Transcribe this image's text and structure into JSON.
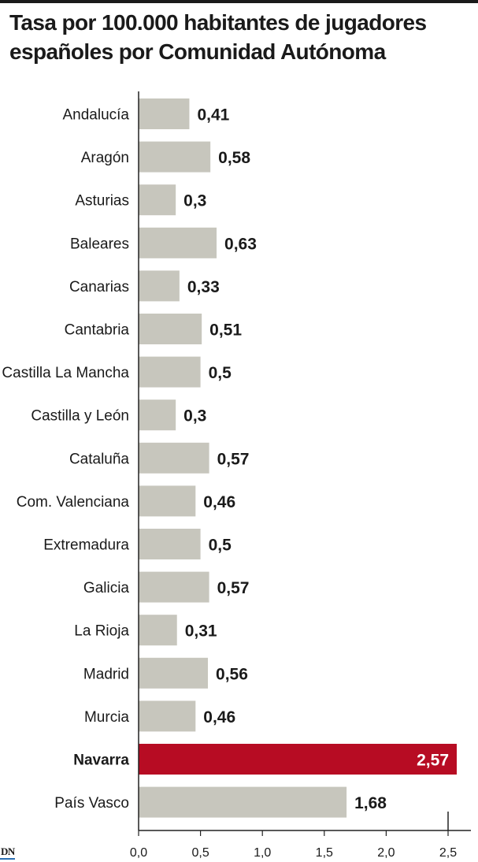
{
  "chart_data": {
    "type": "bar",
    "orientation": "horizontal",
    "title": "Tasa por 100.000 habitantes de jugadores españoles por Comunidad Autónoma",
    "categories": [
      "Andalucía",
      "Aragón",
      "Asturias",
      "Baleares",
      "Canarias",
      "Cantabria",
      "Castilla La Mancha",
      "Castilla y León",
      "Cataluña",
      "Com. Valenciana",
      "Extremadura",
      "Galicia",
      "La Rioja",
      "Madrid",
      "Murcia",
      "Navarra",
      "País Vasco"
    ],
    "values": [
      0.41,
      0.58,
      0.3,
      0.63,
      0.33,
      0.51,
      0.5,
      0.3,
      0.57,
      0.46,
      0.5,
      0.57,
      0.31,
      0.56,
      0.46,
      2.57,
      1.68
    ],
    "value_labels": [
      "0,41",
      "0,58",
      "0,3",
      "0,63",
      "0,33",
      "0,51",
      "0,5",
      "0,3",
      "0,57",
      "0,46",
      "0,5",
      "0,57",
      "0,31",
      "0,56",
      "0,46",
      "2,57",
      "1,68"
    ],
    "highlight": "Navarra",
    "xlim": [
      0,
      2.5
    ],
    "xticks": [
      0,
      0.5,
      1.0,
      1.5,
      2.0,
      2.5
    ],
    "xtick_labels": [
      "0,0",
      "0,5",
      "1,0",
      "1,5",
      "2,0",
      "2,5"
    ],
    "xlabel": "",
    "ylabel": "",
    "grid": false,
    "colors": {
      "bar": "#c7c6bd",
      "highlight": "#b70c23",
      "text": "#1a1a1a",
      "axis": "#222222"
    }
  },
  "footer": {
    "logo": "DN"
  }
}
